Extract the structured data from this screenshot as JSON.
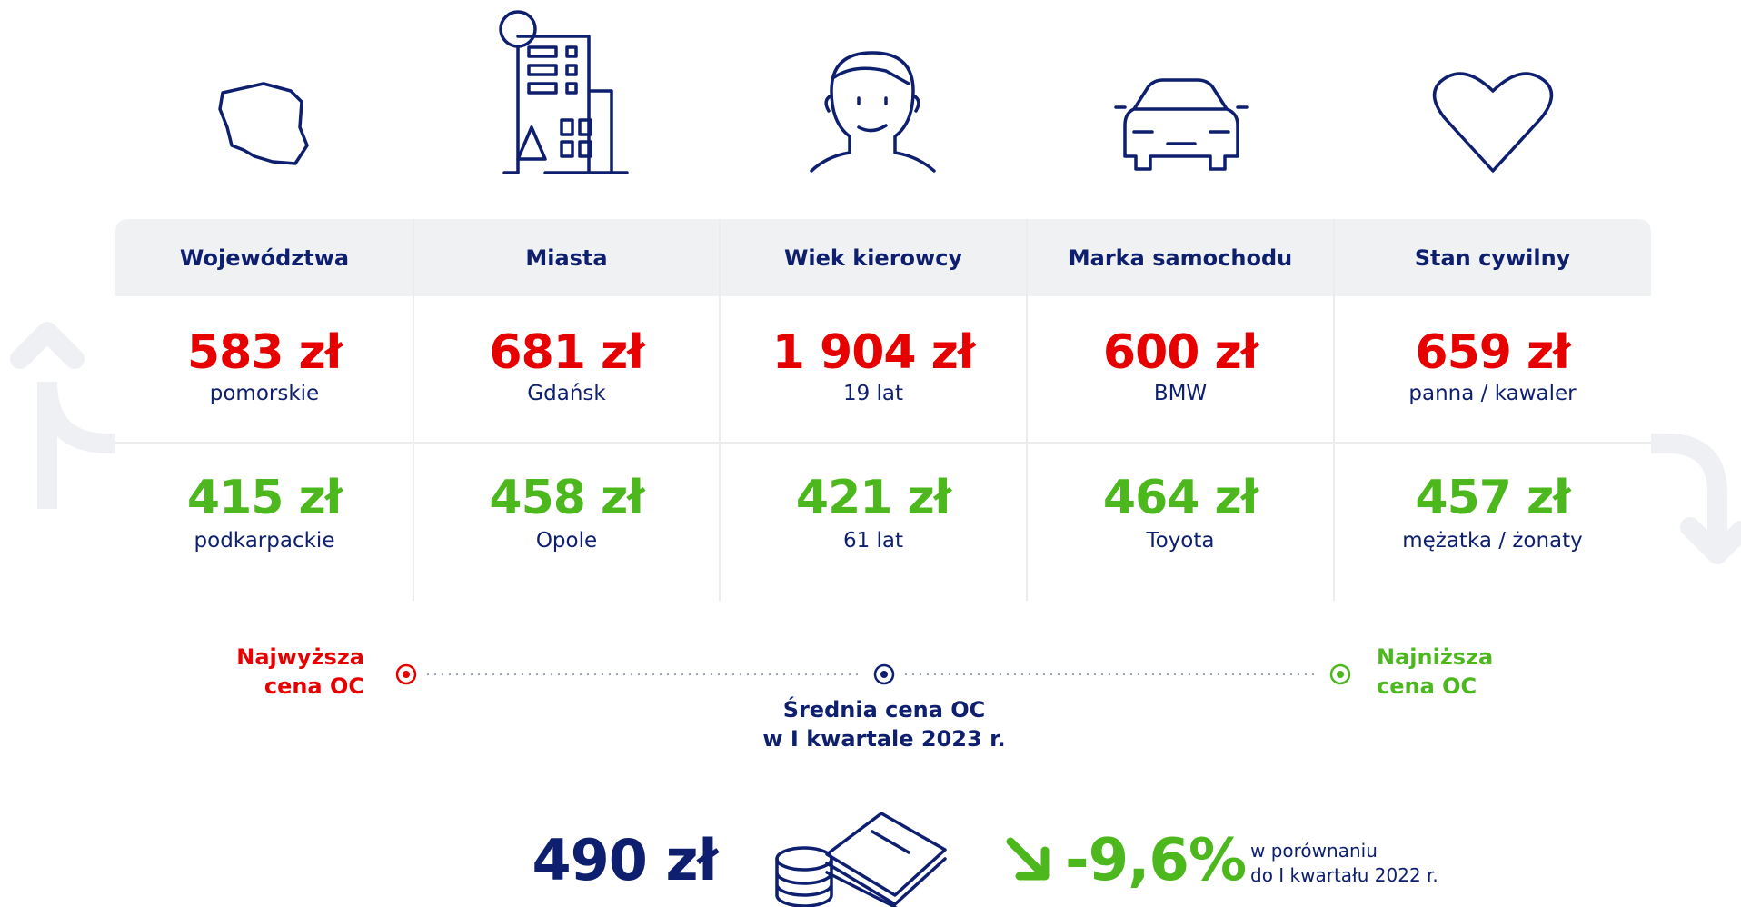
{
  "columns": [
    {
      "header": "Województwa",
      "high": {
        "price": "583 zł",
        "label": "pomorskie"
      },
      "low": {
        "price": "415 zł",
        "label": "podkarpackie"
      }
    },
    {
      "header": "Miasta",
      "high": {
        "price": "681 zł",
        "label": "Gdańsk"
      },
      "low": {
        "price": "458 zł",
        "label": "Opole"
      }
    },
    {
      "header": "Wiek kierowcy",
      "high": {
        "price": "1 904 zł",
        "label": "19 lat"
      },
      "low": {
        "price": "421 zł",
        "label": "61 lat"
      }
    },
    {
      "header": "Marka samochodu",
      "high": {
        "price": "600 zł",
        "label": "BMW"
      },
      "low": {
        "price": "464 zł",
        "label": "Toyota"
      }
    },
    {
      "header": "Stan cywilny",
      "high": {
        "price": "659 zł",
        "label": "panna / kawaler"
      },
      "low": {
        "price": "457 zł",
        "label": "mężatka / żonaty"
      }
    }
  ],
  "legend": {
    "highest": [
      "Najwyższa",
      "cena OC"
    ],
    "average": [
      "Średnia cena OC",
      "w I kwartale 2023 r."
    ],
    "lowest": [
      "Najniższa",
      "cena OC"
    ]
  },
  "summary": {
    "price": "490 zł",
    "change": "-9,6%",
    "note": [
      "w porównaniu",
      "do I kwartału 2022 r."
    ]
  }
}
